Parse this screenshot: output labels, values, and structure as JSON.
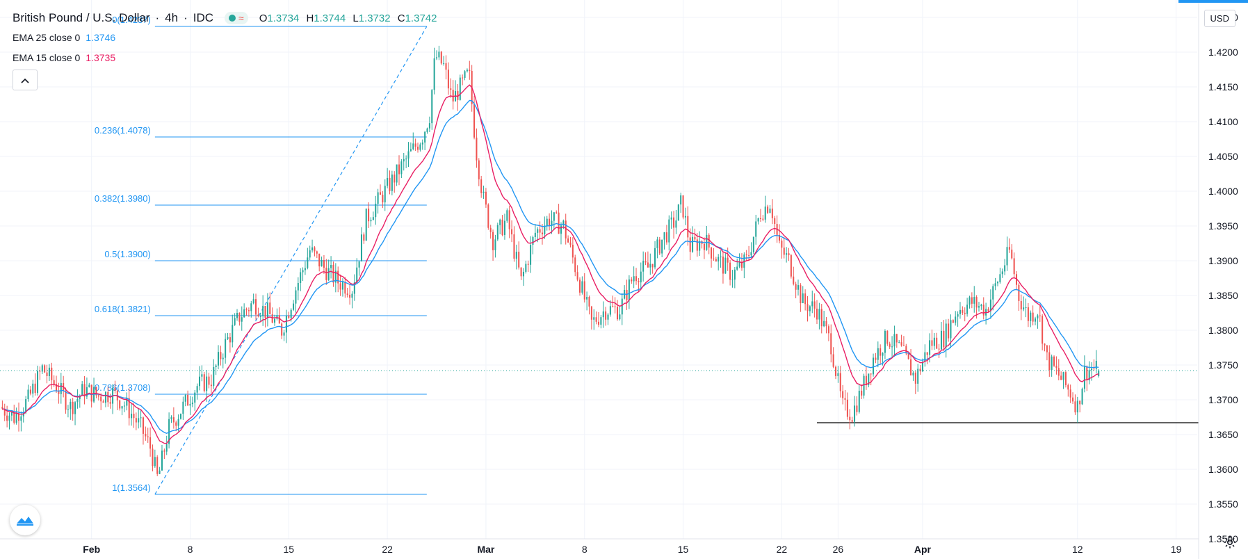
{
  "header": {
    "symbol": "British Pound / U.S. Dollar",
    "interval": "4h",
    "exchange": "IDC",
    "open_label": "O",
    "open": "1.3734",
    "high_label": "H",
    "high": "1.3744",
    "low_label": "L",
    "low": "1.3732",
    "close_label": "C",
    "close": "1.3742"
  },
  "indicators": [
    {
      "label": "EMA 25 close 0",
      "value": "1.3746",
      "color": "#2196f3"
    },
    {
      "label": "EMA 15 close 0",
      "value": "1.3735",
      "color": "#e91e63"
    }
  ],
  "currency_button": "USD",
  "colors": {
    "up": "#26a69a",
    "down": "#ef5350",
    "fib": "#2196f3",
    "support": "#000000"
  },
  "icons": [
    "chevron-up-icon",
    "tradingview-logo-icon",
    "settings-gear-icon"
  ],
  "chart_data": {
    "type": "candlestick",
    "y_axis": {
      "min": 1.35,
      "max": 1.4275,
      "ticks": [
        "1.4250",
        "1.4200",
        "1.4150",
        "1.4100",
        "1.4050",
        "1.4000",
        "1.3950",
        "1.3900",
        "1.3850",
        "1.3800",
        "1.3750",
        "1.3700",
        "1.3650",
        "1.3600",
        "1.3550",
        "1.3500"
      ]
    },
    "x_axis": {
      "ticks": [
        {
          "label": "Feb",
          "bold": true,
          "t": 0
        },
        {
          "label": "8",
          "t": 7
        },
        {
          "label": "15",
          "t": 14
        },
        {
          "label": "22",
          "t": 21
        },
        {
          "label": "Mar",
          "bold": true,
          "t": 28
        },
        {
          "label": "8",
          "t": 35
        },
        {
          "label": "15",
          "t": 42
        },
        {
          "label": "22",
          "t": 49
        },
        {
          "label": "26",
          "t": 53
        },
        {
          "label": "Apr",
          "bold": true,
          "t": 59
        },
        {
          "label": "12",
          "t": 70
        },
        {
          "label": "19",
          "t": 77
        }
      ]
    },
    "time_range_days": [
      -6.5,
      78.5
    ],
    "last_price": "1.3742",
    "support_level": {
      "label": "1.3667",
      "value": 1.3667,
      "from_t": 51.5
    },
    "fibonacci": {
      "from_t": 4.5,
      "to_t": 23.8,
      "low": 1.3564,
      "high": 1.4237,
      "levels": [
        {
          "label": "0(1.4237)",
          "value": 1.4237
        },
        {
          "label": "0.236(1.4078)",
          "value": 1.4078
        },
        {
          "label": "0.382(1.3980)",
          "value": 1.398
        },
        {
          "label": "0.5(1.3900)",
          "value": 1.39
        },
        {
          "label": "0.618(1.3821)",
          "value": 1.3821
        },
        {
          "label": "0.786(1.3708)",
          "value": 1.3708
        },
        {
          "label": "1(1.3564)",
          "value": 1.3564
        }
      ]
    },
    "close_path": [
      [
        -6.5,
        1.369
      ],
      [
        -5.5,
        1.3675
      ],
      [
        -4.5,
        1.37
      ],
      [
        -3.5,
        1.3745
      ],
      [
        -2.5,
        1.372
      ],
      [
        -1.5,
        1.369
      ],
      [
        -0.5,
        1.3715
      ],
      [
        0.5,
        1.3705
      ],
      [
        1.5,
        1.371
      ],
      [
        2.5,
        1.369
      ],
      [
        3.5,
        1.366
      ],
      [
        4.2,
        1.363
      ],
      [
        4.7,
        1.3585
      ],
      [
        5.5,
        1.366
      ],
      [
        6.5,
        1.369
      ],
      [
        7.5,
        1.372
      ],
      [
        8.5,
        1.373
      ],
      [
        9.5,
        1.378
      ],
      [
        10.5,
        1.382
      ],
      [
        11.5,
        1.384
      ],
      [
        12.5,
        1.3825
      ],
      [
        13.5,
        1.38
      ],
      [
        14.5,
        1.386
      ],
      [
        15.5,
        1.3915
      ],
      [
        16.5,
        1.389
      ],
      [
        17.5,
        1.387
      ],
      [
        18.5,
        1.386
      ],
      [
        19.5,
        1.396
      ],
      [
        20.5,
        1.399
      ],
      [
        21.5,
        1.402
      ],
      [
        22.5,
        1.405
      ],
      [
        23.5,
        1.408
      ],
      [
        24.0,
        1.411
      ],
      [
        24.4,
        1.4195
      ],
      [
        25.0,
        1.418
      ],
      [
        25.6,
        1.413
      ],
      [
        26.2,
        1.415
      ],
      [
        26.8,
        1.417
      ],
      [
        27.3,
        1.406
      ],
      [
        27.8,
        1.399
      ],
      [
        28.5,
        1.393
      ],
      [
        29.5,
        1.396
      ],
      [
        30.5,
        1.387
      ],
      [
        31.5,
        1.394
      ],
      [
        32.5,
        1.396
      ],
      [
        33.5,
        1.395
      ],
      [
        34.5,
        1.388
      ],
      [
        35.5,
        1.381
      ],
      [
        36.5,
        1.383
      ],
      [
        37.5,
        1.383
      ],
      [
        38.5,
        1.388
      ],
      [
        39.5,
        1.389
      ],
      [
        40.5,
        1.393
      ],
      [
        41.5,
        1.396
      ],
      [
        41.9,
        1.3985
      ],
      [
        42.5,
        1.392
      ],
      [
        43.5,
        1.393
      ],
      [
        44.5,
        1.39
      ],
      [
        45.5,
        1.388
      ],
      [
        46.5,
        1.39
      ],
      [
        47.5,
        1.397
      ],
      [
        48.2,
        1.3985
      ],
      [
        48.8,
        1.392
      ],
      [
        49.5,
        1.39
      ],
      [
        50.5,
        1.384
      ],
      [
        51.5,
        1.383
      ],
      [
        52.5,
        1.378
      ],
      [
        53.3,
        1.369
      ],
      [
        54.0,
        1.368
      ],
      [
        54.8,
        1.372
      ],
      [
        55.5,
        1.376
      ],
      [
        56.5,
        1.379
      ],
      [
        57.5,
        1.377
      ],
      [
        58.5,
        1.373
      ],
      [
        59.5,
        1.378
      ],
      [
        60.5,
        1.379
      ],
      [
        61.5,
        1.383
      ],
      [
        62.5,
        1.384
      ],
      [
        63.5,
        1.383
      ],
      [
        64.5,
        1.388
      ],
      [
        65.2,
        1.3915
      ],
      [
        65.8,
        1.385
      ],
      [
        66.5,
        1.382
      ],
      [
        67.2,
        1.383
      ],
      [
        67.8,
        1.376
      ],
      [
        68.5,
        1.374
      ],
      [
        69.5,
        1.371
      ],
      [
        70.0,
        1.369
      ],
      [
        70.5,
        1.374
      ],
      [
        71.0,
        1.3745
      ],
      [
        71.5,
        1.3742
      ]
    ]
  }
}
